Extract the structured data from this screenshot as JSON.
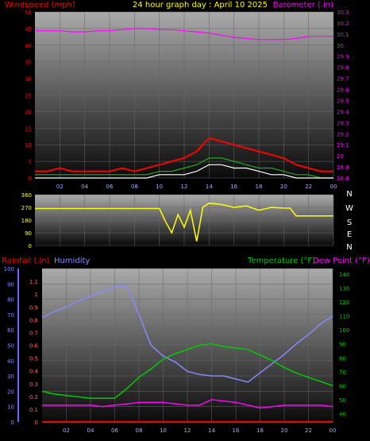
{
  "title": "24 hour graph day : April 10 2025",
  "x_ticks": [
    "02",
    "04",
    "06",
    "08",
    "10",
    "12",
    "14",
    "16",
    "18",
    "20",
    "22",
    "00"
  ],
  "colors": {
    "wind_speed": "#ff0000",
    "wind_gust": "#ff0000",
    "wind_avg": "#22aa22",
    "wind_low": "#ffffff",
    "barometer": "#ff00ff",
    "direction": "#ffff00",
    "humidity": "#8888ff",
    "temperature": "#00cc00",
    "dew_point": "#ff00ff",
    "rainfall": "#ff0000"
  },
  "chart_data": [
    {
      "type": "line",
      "name": "wind-barometer",
      "left_label": "Windspeed (mph)",
      "right_label": "Barometer (.in)",
      "left_ticks": [
        0,
        5,
        10,
        15,
        20,
        25,
        30,
        35,
        40,
        45,
        50
      ],
      "right_ticks": [
        "28.8",
        "28.9",
        "29",
        "29.1",
        "29.2",
        "29.3",
        "29.4",
        "29.5",
        "29.6",
        "29.7",
        "29.8",
        "29.9",
        "30",
        "30.1",
        "30.2",
        "30.3"
      ],
      "ylim_left": [
        0,
        50
      ],
      "ylim_right": [
        28.8,
        30.3
      ],
      "x": [
        0,
        1,
        2,
        3,
        4,
        5,
        6,
        7,
        8,
        9,
        10,
        11,
        12,
        13,
        14,
        15,
        16,
        17,
        18,
        19,
        20,
        21,
        22,
        23,
        24
      ],
      "series": [
        {
          "key": "wind_gust",
          "values": [
            2,
            2,
            3,
            2,
            2,
            2,
            2,
            3,
            2,
            3,
            4,
            5,
            6,
            8,
            12,
            11,
            10,
            9,
            8,
            7,
            6,
            4,
            3,
            2,
            2
          ]
        },
        {
          "key": "wind_avg",
          "values": [
            1,
            1,
            1,
            1,
            1,
            1,
            1,
            1,
            1,
            1,
            2,
            2,
            3,
            4,
            6,
            6,
            5,
            4,
            3,
            3,
            2,
            1,
            1,
            0,
            0
          ]
        },
        {
          "key": "wind_low",
          "values": [
            0,
            0,
            0,
            0,
            0,
            0,
            0,
            0,
            0,
            0,
            1,
            1,
            1,
            2,
            4,
            4,
            3,
            3,
            2,
            1,
            1,
            0,
            0,
            0,
            0
          ]
        },
        {
          "key": "barometer",
          "values": [
            30.13,
            30.13,
            30.13,
            30.12,
            30.12,
            30.13,
            30.13,
            30.14,
            30.15,
            30.15,
            30.14,
            30.14,
            30.13,
            30.12,
            30.11,
            30.09,
            30.07,
            30.06,
            30.05,
            30.05,
            30.05,
            30.06,
            30.08,
            30.08,
            30.08
          ]
        }
      ]
    },
    {
      "type": "line",
      "name": "wind-direction",
      "left_ticks": [
        0,
        90,
        180,
        270,
        360
      ],
      "right_ticks": [
        "N",
        "W",
        "S",
        "E",
        "N"
      ],
      "ylim": [
        0,
        360
      ],
      "x": [
        0,
        1,
        2,
        3,
        4,
        5,
        6,
        7,
        8,
        9,
        10,
        10.5,
        11,
        11.5,
        12,
        12.5,
        13,
        13.5,
        14,
        15,
        16,
        17,
        18,
        19,
        20,
        20.5,
        21,
        22,
        23,
        24
      ],
      "series": [
        {
          "key": "direction",
          "values": [
            262,
            262,
            262,
            262,
            262,
            262,
            262,
            262,
            262,
            262,
            262,
            170,
            90,
            220,
            130,
            250,
            30,
            270,
            300,
            290,
            270,
            280,
            250,
            270,
            265,
            265,
            210,
            210,
            210,
            210
          ]
        }
      ]
    },
    {
      "type": "line",
      "name": "humidity-temperature",
      "left_label_rain": "Rainfall (.in)",
      "left_label_humidity": "Humidity",
      "right_label_temp": "Temperature (°F)",
      "right_label_dew": "Dew Point (°F)",
      "humidity_ticks": [
        0,
        10,
        20,
        30,
        40,
        50,
        60,
        70,
        80,
        90,
        100
      ],
      "rain_ticks": [
        "0",
        "0.1",
        "0.2",
        "0.3",
        "0.4",
        "0.5",
        "0.6",
        "0.7",
        "0.8",
        "0.9",
        "1",
        "1.1"
      ],
      "temp_ticks": [
        40,
        50,
        60,
        70,
        80,
        90,
        100,
        110,
        120,
        130,
        140
      ],
      "ylim_humidity": [
        0,
        100
      ],
      "ylim_temp": [
        34,
        144
      ],
      "x": [
        0,
        1,
        2,
        3,
        4,
        5,
        6,
        7,
        8,
        9,
        10,
        11,
        12,
        13,
        14,
        15,
        16,
        17,
        18,
        19,
        20,
        21,
        22,
        23,
        24
      ],
      "series": [
        {
          "key": "humidity",
          "values": [
            68,
            72,
            75,
            79,
            82,
            85,
            88,
            89,
            70,
            50,
            43,
            39,
            33,
            31,
            30,
            30,
            28,
            26,
            32,
            38,
            44,
            51,
            57,
            64,
            69
          ]
        },
        {
          "key": "temperature",
          "values": [
            56,
            54,
            53,
            52,
            51,
            51,
            51,
            58,
            66,
            72,
            79,
            83,
            86,
            89,
            90,
            88,
            87,
            86,
            82,
            78,
            73,
            69,
            66,
            63,
            60
          ]
        },
        {
          "key": "dew_point",
          "values": [
            46,
            46,
            46,
            46,
            46,
            45,
            46,
            47,
            48,
            48,
            48,
            47,
            46,
            46,
            50,
            49,
            48,
            46,
            44,
            45,
            46,
            46,
            46,
            46,
            45
          ]
        },
        {
          "key": "rainfall",
          "values": [
            0,
            0,
            0,
            0,
            0,
            0,
            0,
            0,
            0,
            0,
            0,
            0,
            0,
            0,
            0,
            0,
            0,
            0,
            0,
            0,
            0,
            0,
            0,
            0,
            0
          ]
        }
      ]
    }
  ]
}
